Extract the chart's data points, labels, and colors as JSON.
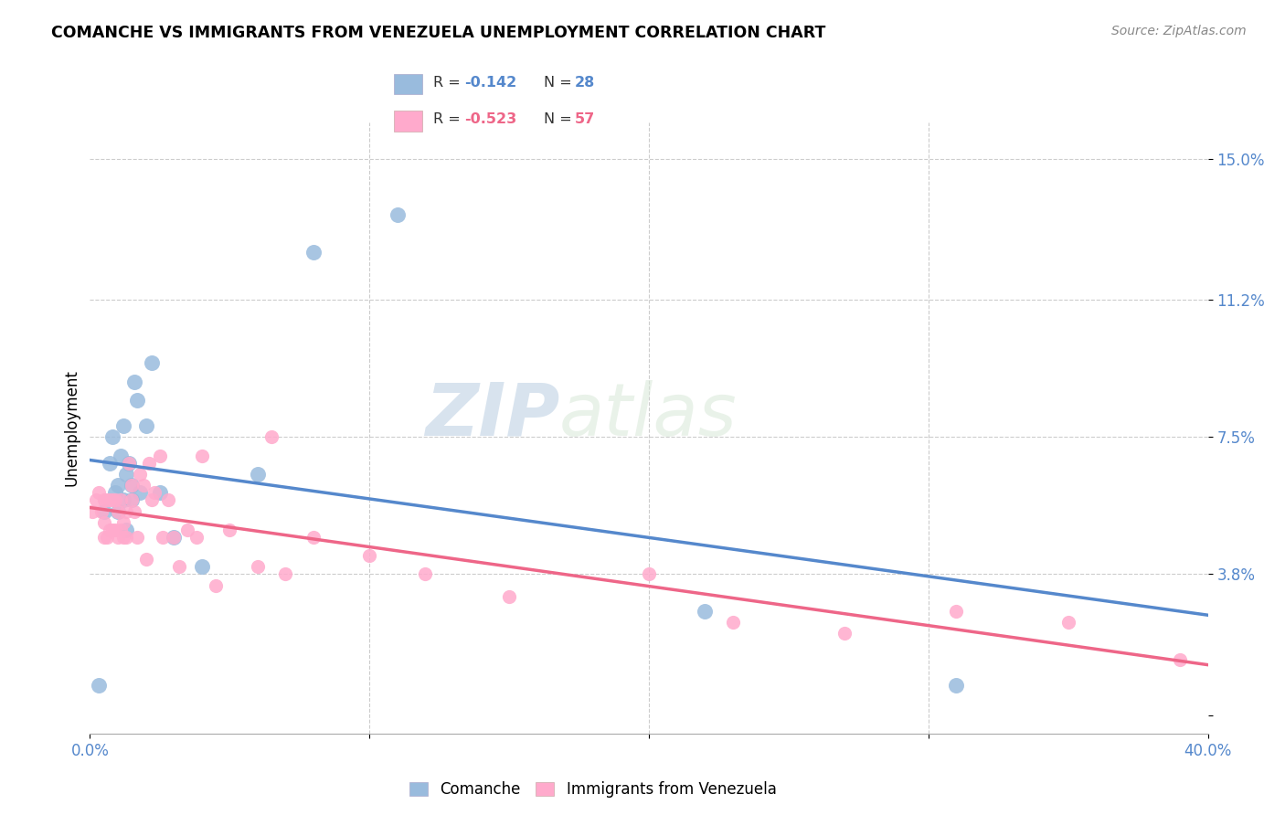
{
  "title": "COMANCHE VS IMMIGRANTS FROM VENEZUELA UNEMPLOYMENT CORRELATION CHART",
  "source": "Source: ZipAtlas.com",
  "ylabel": "Unemployment",
  "yticks": [
    0.0,
    0.038,
    0.075,
    0.112,
    0.15
  ],
  "ytick_labels": [
    "",
    "3.8%",
    "7.5%",
    "11.2%",
    "15.0%"
  ],
  "xlim": [
    0.0,
    0.4
  ],
  "ylim": [
    -0.005,
    0.16
  ],
  "legend_r1": "R = ",
  "legend_v1": "-0.142",
  "legend_n1_label": "N = ",
  "legend_n1_val": "28",
  "legend_r2": "R = ",
  "legend_v2": "-0.523",
  "legend_n2_label": "N = ",
  "legend_n2_val": "57",
  "color_blue": "#99BBDD",
  "color_pink": "#FFAACC",
  "color_line_blue": "#5588CC",
  "color_line_pink": "#EE6688",
  "color_ytick": "#5588CC",
  "watermark_zip": "ZIP",
  "watermark_atlas": "atlas",
  "comanche_x": [
    0.003,
    0.005,
    0.007,
    0.008,
    0.009,
    0.01,
    0.01,
    0.011,
    0.012,
    0.012,
    0.013,
    0.013,
    0.014,
    0.015,
    0.015,
    0.016,
    0.017,
    0.018,
    0.02,
    0.022,
    0.025,
    0.03,
    0.04,
    0.06,
    0.08,
    0.11,
    0.22,
    0.31
  ],
  "comanche_y": [
    0.008,
    0.055,
    0.068,
    0.075,
    0.06,
    0.062,
    0.055,
    0.07,
    0.078,
    0.058,
    0.065,
    0.05,
    0.068,
    0.062,
    0.058,
    0.09,
    0.085,
    0.06,
    0.078,
    0.095,
    0.06,
    0.048,
    0.04,
    0.065,
    0.125,
    0.135,
    0.028,
    0.008
  ],
  "venezuela_x": [
    0.001,
    0.002,
    0.003,
    0.004,
    0.005,
    0.005,
    0.005,
    0.006,
    0.006,
    0.007,
    0.007,
    0.008,
    0.008,
    0.009,
    0.009,
    0.01,
    0.01,
    0.011,
    0.011,
    0.012,
    0.012,
    0.013,
    0.013,
    0.014,
    0.015,
    0.015,
    0.016,
    0.017,
    0.018,
    0.019,
    0.02,
    0.021,
    0.022,
    0.023,
    0.025,
    0.026,
    0.028,
    0.03,
    0.032,
    0.035,
    0.038,
    0.04,
    0.045,
    0.05,
    0.06,
    0.065,
    0.07,
    0.08,
    0.1,
    0.12,
    0.15,
    0.2,
    0.23,
    0.27,
    0.31,
    0.35,
    0.39
  ],
  "venezuela_y": [
    0.055,
    0.058,
    0.06,
    0.055,
    0.052,
    0.048,
    0.058,
    0.058,
    0.048,
    0.058,
    0.05,
    0.058,
    0.05,
    0.05,
    0.058,
    0.055,
    0.048,
    0.058,
    0.05,
    0.052,
    0.048,
    0.055,
    0.048,
    0.068,
    0.062,
    0.058,
    0.055,
    0.048,
    0.065,
    0.062,
    0.042,
    0.068,
    0.058,
    0.06,
    0.07,
    0.048,
    0.058,
    0.048,
    0.04,
    0.05,
    0.048,
    0.07,
    0.035,
    0.05,
    0.04,
    0.075,
    0.038,
    0.048,
    0.043,
    0.038,
    0.032,
    0.038,
    0.025,
    0.022,
    0.028,
    0.025,
    0.015
  ]
}
